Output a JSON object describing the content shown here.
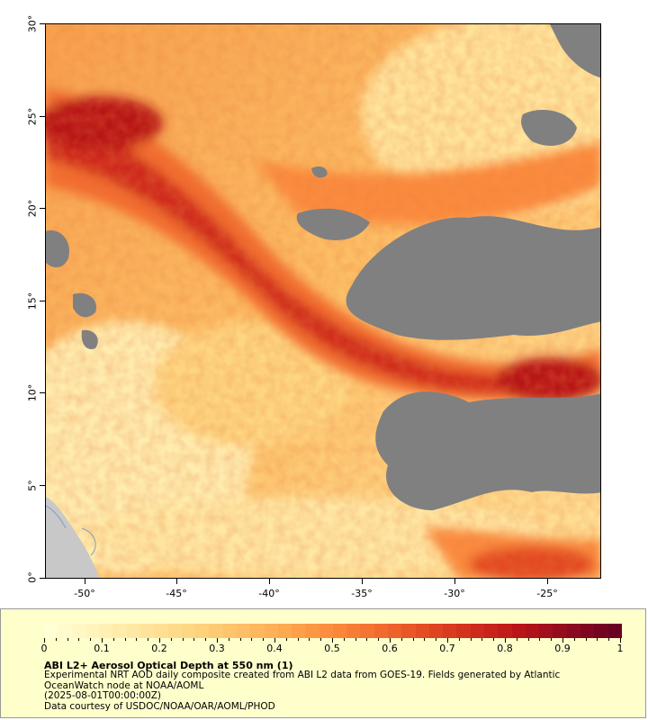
{
  "map": {
    "lat_ticks": [
      "30°",
      "25°",
      "20°",
      "15°",
      "10°",
      "5°",
      "0°"
    ],
    "lon_ticks": [
      "-50°",
      "-45°",
      "-40°",
      "-35°",
      "-30°",
      "-25°"
    ],
    "colors": {
      "no_data": "#808080",
      "land": "#c8c8c8",
      "ocean_base": "#ffd27a"
    }
  },
  "legend": {
    "colorbar_ticks": [
      "0",
      "0.1",
      "0.2",
      "0.3",
      "0.4",
      "0.5",
      "0.6",
      "0.7",
      "0.8",
      "0.9",
      "1"
    ],
    "colorbar_colors": [
      "#ffffd4",
      "#fff3b8",
      "#ffe49c",
      "#fed681",
      "#fdc067",
      "#fca84f",
      "#fb8b3c",
      "#f26c2e",
      "#e34a22",
      "#cf2b1c",
      "#b81419",
      "#8d0a1f",
      "#6a0024"
    ],
    "title": "ABI L2+ Aerosol Optical Depth at 550 nm (1)",
    "description_lines": [
      "Experimental NRT AOD daily composite created from ABI L2 data from GOES-19. Fields generated by Atlantic",
      "OceanWatch node at NOAA/AOML",
      "(2025-08-01T00:00:00Z)",
      "Data courtesy of USDOC/NOAA/OAR/AOML/PHOD"
    ]
  }
}
